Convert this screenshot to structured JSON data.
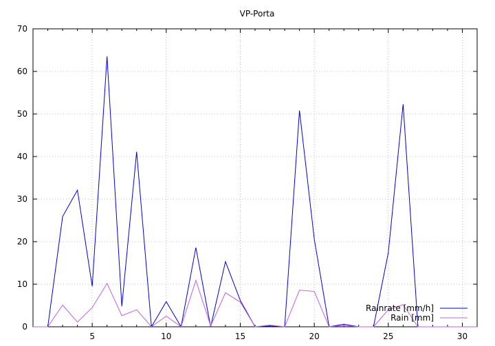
{
  "chart_data": {
    "type": "line",
    "title": "VP-Porta",
    "xlabel": "",
    "ylabel": "",
    "xlim": [
      1,
      31
    ],
    "ylim": [
      0,
      70
    ],
    "x_ticks": [
      5,
      10,
      15,
      20,
      25,
      30
    ],
    "y_ticks": [
      0,
      10,
      20,
      30,
      40,
      50,
      60,
      70
    ],
    "grid": true,
    "legend_position": "bottom-right",
    "x": [
      1,
      2,
      3,
      4,
      5,
      6,
      7,
      8,
      9,
      10,
      11,
      12,
      13,
      14,
      15,
      16,
      17,
      18,
      19,
      20,
      21,
      22,
      23,
      24,
      25,
      26,
      27,
      28,
      29,
      30,
      31
    ],
    "series": [
      {
        "name": "Rainrate [mm/h]",
        "color": "#0000cc",
        "values": [
          0,
          0,
          25.9,
          32.1,
          9.5,
          63.5,
          4.8,
          41.1,
          0,
          5.9,
          0,
          18.6,
          0,
          15.3,
          6.2,
          0,
          0.2,
          0,
          50.8,
          20.6,
          0,
          0.6,
          0,
          0,
          17.4,
          52.3,
          0,
          0,
          0,
          0,
          0
        ]
      },
      {
        "name": "Rain [mm]",
        "color": "#c060e0",
        "values": [
          0,
          0,
          5.1,
          1.1,
          4.5,
          10.2,
          2.6,
          4,
          0,
          2.5,
          0,
          10.9,
          0.2,
          8,
          5.8,
          0,
          0.4,
          0,
          8.6,
          8.3,
          0,
          0.3,
          0,
          0,
          4,
          5.2,
          0,
          0,
          0,
          0,
          0
        ]
      }
    ]
  }
}
